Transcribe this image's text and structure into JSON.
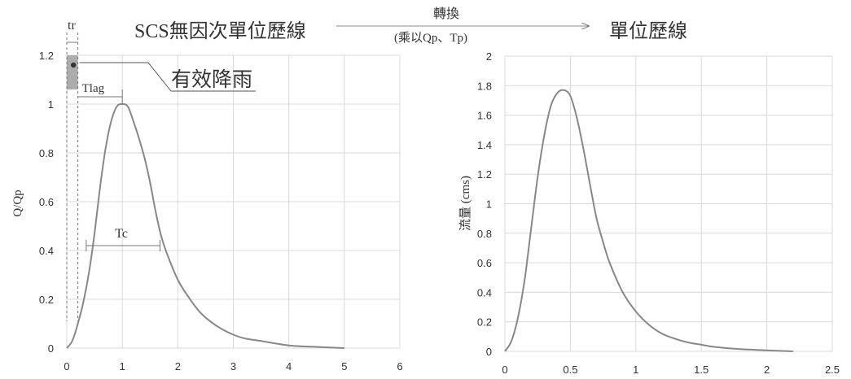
{
  "header": {
    "left_title": "SCS無因次單位歷線",
    "arrow_top_label": "轉換",
    "arrow_bottom_label": "(乘以Qp、Tp)",
    "right_title": "單位歷線"
  },
  "annotations": {
    "tr": "tr",
    "tlag": "Tlag",
    "tc": "Tc",
    "rainfall": "有效降雨"
  },
  "colors": {
    "curve": "#888888",
    "grid": "#d9d9d9",
    "rain": "#9e9e9e",
    "text": "#333333"
  },
  "chart_data": [
    {
      "type": "line",
      "title": "SCS無因次單位歷線",
      "ylabel": "Q/Qp",
      "xlabel": "",
      "xlim": [
        0,
        6
      ],
      "ylim": [
        0,
        1.2
      ],
      "xticks": [
        "0",
        "1",
        "2",
        "3",
        "4",
        "5",
        "6"
      ],
      "yticks": [
        "0",
        "0.2",
        "0.4",
        "0.6",
        "0.8",
        "1",
        "1.2"
      ],
      "grid": true,
      "series": [
        {
          "x": [
            0,
            0.1,
            0.2,
            0.3,
            0.4,
            0.5,
            0.6,
            0.7,
            0.8,
            0.9,
            1.0,
            1.1,
            1.2,
            1.3,
            1.4,
            1.5,
            1.6,
            1.7,
            1.8,
            2.0,
            2.2,
            2.4,
            2.6,
            2.8,
            3.0,
            3.2,
            3.5,
            4.0,
            4.5,
            5.0
          ],
          "y": [
            0,
            0.03,
            0.1,
            0.19,
            0.31,
            0.47,
            0.66,
            0.82,
            0.93,
            0.99,
            1.0,
            0.99,
            0.93,
            0.86,
            0.78,
            0.68,
            0.56,
            0.46,
            0.39,
            0.28,
            0.207,
            0.147,
            0.107,
            0.077,
            0.055,
            0.04,
            0.029,
            0.011,
            0.005,
            0
          ]
        }
      ],
      "rainfall_bar": {
        "x_start": 0,
        "x_end": 0.2,
        "y_start": 1.06,
        "y_end": 1.2
      },
      "tr_range": [
        0,
        0.2
      ],
      "tlag_range": [
        0.2,
        1.0
      ],
      "tc_range": [
        0.35,
        1.68
      ],
      "tc_y": 0.42
    },
    {
      "type": "line",
      "title": "單位歷線",
      "ylabel": "流量 (cms)",
      "xlabel": "",
      "xlim": [
        0,
        2.5
      ],
      "ylim": [
        0,
        2
      ],
      "xticks": [
        "0",
        "0.5",
        "1",
        "1.5",
        "2",
        "2.5"
      ],
      "yticks": [
        "0",
        "0.2",
        "0.4",
        "0.6",
        "0.8",
        "1",
        "1.2",
        "1.4",
        "1.6",
        "1.8",
        "2"
      ],
      "grid": true,
      "series": [
        {
          "x": [
            0,
            0.05,
            0.1,
            0.15,
            0.2,
            0.25,
            0.3,
            0.35,
            0.4,
            0.45,
            0.5,
            0.55,
            0.6,
            0.65,
            0.7,
            0.75,
            0.8,
            0.9,
            1.0,
            1.1,
            1.2,
            1.3,
            1.4,
            1.5,
            1.6,
            1.8,
            2.0,
            2.2
          ],
          "y": [
            0,
            0.07,
            0.23,
            0.48,
            0.83,
            1.18,
            1.46,
            1.66,
            1.75,
            1.77,
            1.73,
            1.58,
            1.37,
            1.13,
            0.9,
            0.74,
            0.6,
            0.4,
            0.27,
            0.18,
            0.12,
            0.085,
            0.06,
            0.045,
            0.03,
            0.015,
            0.007,
            0
          ]
        }
      ]
    }
  ]
}
